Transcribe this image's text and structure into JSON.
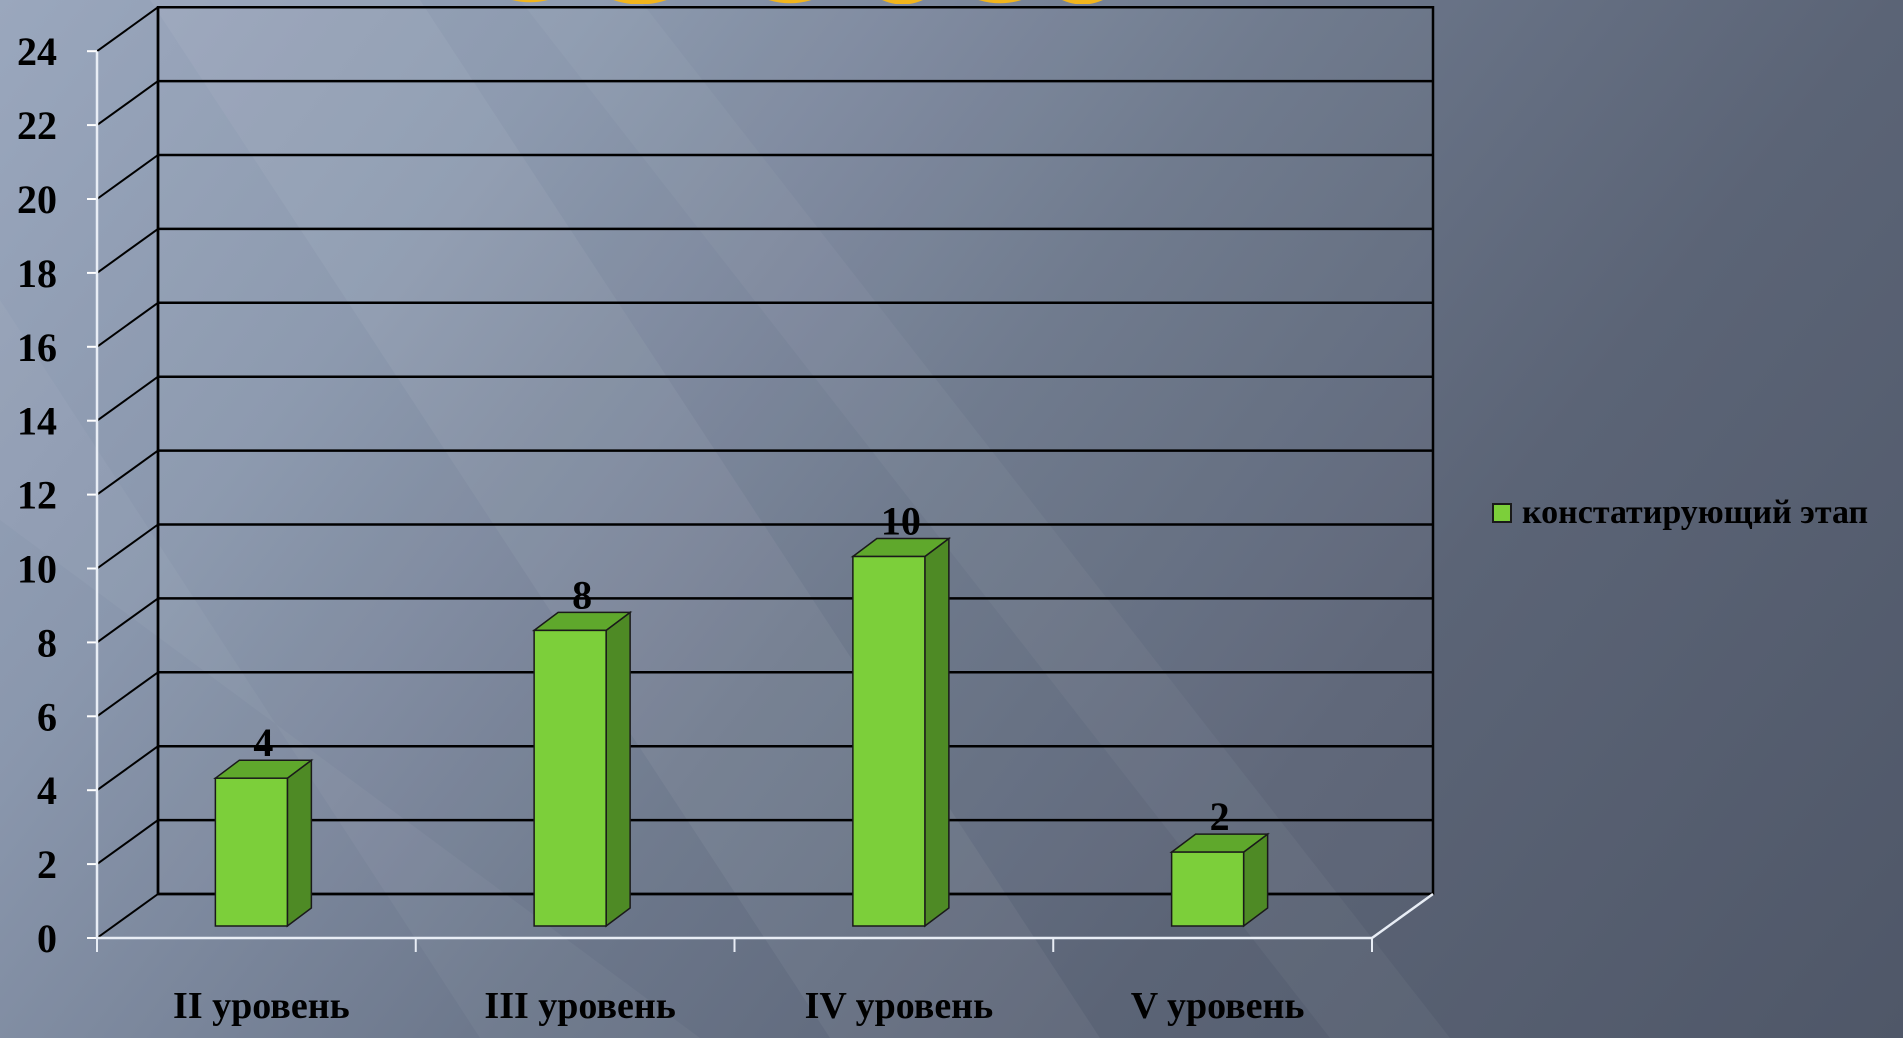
{
  "chart_data": {
    "type": "bar",
    "categories": [
      "II уровень",
      "III уровень",
      "IV уровень",
      "V уровень"
    ],
    "series": [
      {
        "name": "констатирующий этап",
        "values": [
          4,
          8,
          10,
          2
        ],
        "color": "#7ccf3a"
      }
    ],
    "data_labels": [
      "4",
      "8",
      "10",
      "2"
    ],
    "ylim": [
      0,
      24
    ],
    "yticks": [
      0,
      2,
      4,
      6,
      8,
      10,
      12,
      14,
      16,
      18,
      20,
      22,
      24
    ],
    "grid": true,
    "legend": "right",
    "style": "3d-column"
  },
  "colors": {
    "bar_front": "#7ccf3a",
    "bar_side": "#4e8a25",
    "bar_top": "#5fa82c",
    "title_fragment": "#f2b51c"
  }
}
